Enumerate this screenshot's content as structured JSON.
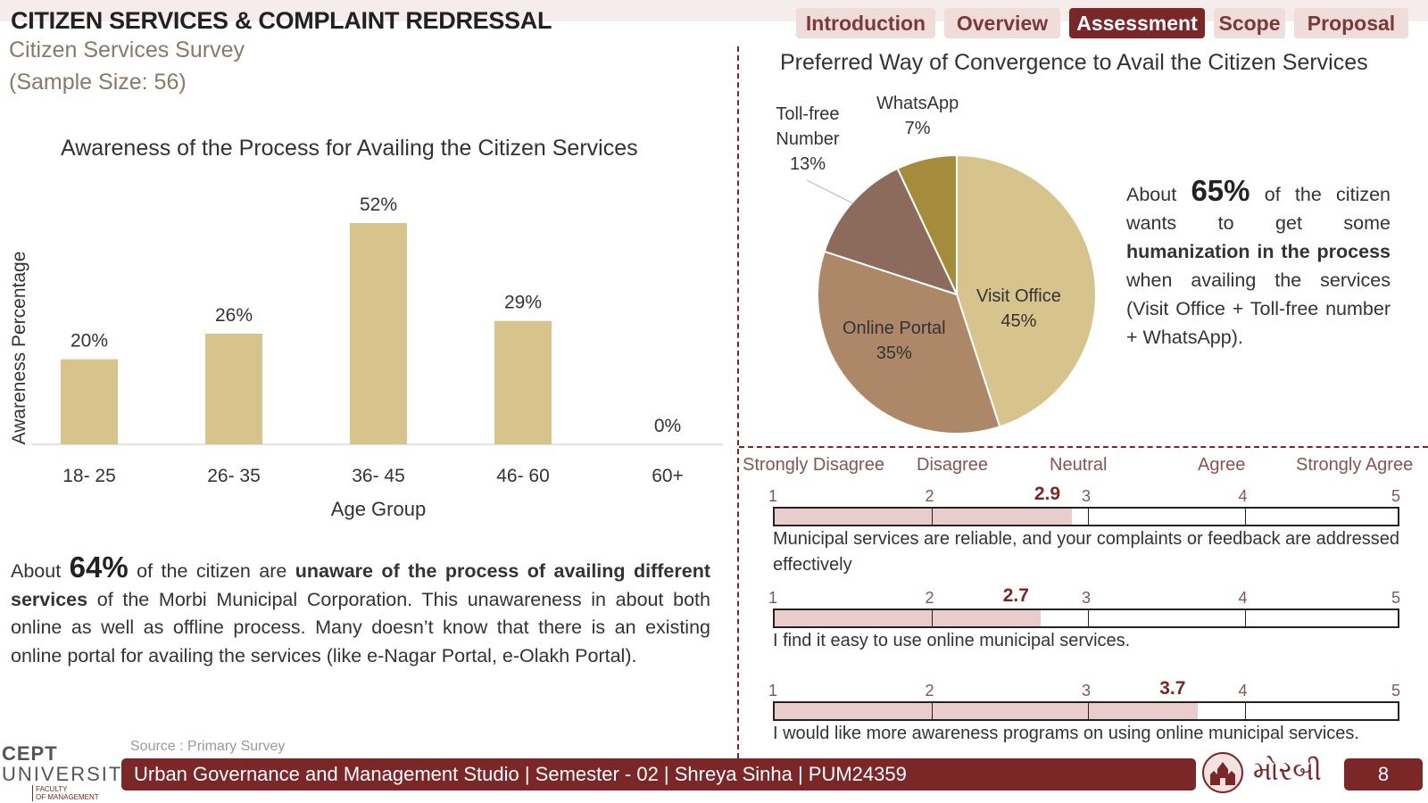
{
  "header": {
    "title": "CITIZEN SERVICES & COMPLAINT REDRESSAL",
    "subtitle": "Citizen Services Survey",
    "sample_size": "(Sample Size: 56)"
  },
  "nav": {
    "tabs": [
      {
        "label": "Introduction",
        "active": false
      },
      {
        "label": "Overview",
        "active": false
      },
      {
        "label": "Assessment",
        "active": true
      },
      {
        "label": "Scope",
        "active": false
      },
      {
        "label": "Proposal",
        "active": false
      }
    ]
  },
  "colors": {
    "accent": "#7b2727",
    "bar": "#d6c48c",
    "pie_visit_office": "#d6c48c",
    "pie_online_portal": "#ad8868",
    "pie_toll_free": "#8c6a5c",
    "pie_whatsapp": "#a48c3c",
    "likert_fill": "#e9cccc"
  },
  "chart_data": [
    {
      "type": "bar",
      "title": "Awareness of the Process for Availing the Citizen Services",
      "xlabel": "Age Group",
      "ylabel": "Awareness Percentage",
      "categories": [
        "18- 25",
        "26- 35",
        "36- 45",
        "46- 60",
        "60+"
      ],
      "values": [
        20,
        26,
        52,
        29,
        0
      ],
      "value_labels": [
        "20%",
        "26%",
        "52%",
        "29%",
        "0%"
      ],
      "ylim": [
        0,
        60
      ],
      "grid": false
    },
    {
      "type": "pie",
      "title": "Preferred Way of Convergence to Avail the Citizen Services",
      "slices": [
        {
          "label": "Visit Office",
          "value": 45,
          "value_label": "45%"
        },
        {
          "label": "Online Portal",
          "value": 35,
          "value_label": "35%"
        },
        {
          "label": "Toll-free Number",
          "value": 13,
          "value_label": "13%"
        },
        {
          "label": "WhatsApp",
          "value": 7,
          "value_label": "7%"
        }
      ]
    }
  ],
  "left_text": {
    "about": "About",
    "pct": "64%",
    "p1": "of the citizen are",
    "bold": "unaware of the process of availing different services",
    "rest": "of the Morbi Municipal Corporation. This unawareness in about both online as well as offline process. Many doesn’t know that there is an existing online portal for availing the services (like e-Nagar Portal, e-Olakh Portal)."
  },
  "right_text": {
    "about": "About",
    "pct": "65%",
    "p1": "of the citizen wants to get some",
    "bold": "humanization in the process",
    "rest": "when availing the services (Visit Office + Toll-free number + WhatsApp)."
  },
  "likert": {
    "labels": [
      "Strongly Disagree",
      "Disagree",
      "Neutral",
      "Agree",
      "Strongly Agree"
    ],
    "scale_numbers": [
      "1",
      "2",
      "3",
      "4",
      "5"
    ],
    "items": [
      {
        "score": 2.9,
        "score_label": "2.9",
        "statement": "Municipal services are reliable, and your complaints or feedback are addressed effectively"
      },
      {
        "score": 2.7,
        "score_label": "2.7",
        "statement": "I find it easy to use online municipal services."
      },
      {
        "score": 3.7,
        "score_label": "3.7",
        "statement": "I would like more awareness programs on using online municipal services."
      }
    ]
  },
  "source": "Source : Primary Survey",
  "logo": {
    "line1": "CEPT",
    "line2": "UNIVERSITY",
    "line3a": "FACULTY",
    "line3b": "OF MANAGEMENT"
  },
  "footer": {
    "text": "Urban Governance and Management Studio | Semester - 02 | Shreya Sinha | PUM24359",
    "city_name": "મોરબી",
    "page_number": "8"
  }
}
